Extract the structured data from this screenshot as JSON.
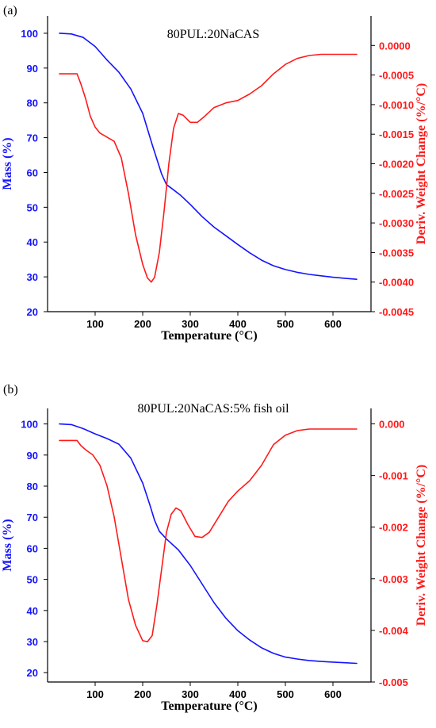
{
  "colors": {
    "mass": "#1414ff",
    "deriv": "#ff1a1a",
    "axis": "#000000"
  },
  "chart_data": [
    {
      "panel_label": "(a)",
      "type": "line",
      "title": "80PUL:20NaCAS",
      "xlabel": "Temperature (°C)",
      "ylabel_left": "Mass (%)",
      "ylabel_right": "Deriv. Weight Change (%/°C)",
      "xlim": [
        0,
        680
      ],
      "ylim_left": [
        20,
        105
      ],
      "ylim_right": [
        -0.0045,
        0.0005
      ],
      "xticks": [
        "100",
        "200",
        "300",
        "400",
        "500",
        "600"
      ],
      "yticks_left": [
        "20",
        "30",
        "40",
        "50",
        "60",
        "70",
        "80",
        "90",
        "100"
      ],
      "yticks_right": [
        "0.0000",
        "-0.0005",
        "-0.0010",
        "-0.0015",
        "-0.0020",
        "-0.0025",
        "-0.0030",
        "-0.0035",
        "-0.0040",
        "-0.0045"
      ],
      "grid": false,
      "series": [
        {
          "axis": "left",
          "x": [
            25,
            50,
            75,
            100,
            125,
            150,
            175,
            200,
            220,
            240,
            250,
            260,
            280,
            300,
            325,
            350,
            375,
            400,
            425,
            450,
            475,
            500,
            525,
            550,
            575,
            600,
            625,
            650
          ],
          "y": [
            100,
            99.8,
            98.8,
            96.2,
            92.3,
            88.8,
            84.0,
            77.0,
            68.0,
            59.5,
            56.5,
            55.5,
            53.4,
            50.8,
            47.3,
            44.3,
            41.8,
            39.3,
            36.9,
            34.8,
            33.2,
            32.1,
            31.3,
            30.7,
            30.3,
            29.9,
            29.6,
            29.3
          ]
        },
        {
          "axis": "right",
          "x": [
            25,
            40,
            55,
            62,
            70,
            80,
            90,
            100,
            110,
            125,
            140,
            155,
            170,
            185,
            200,
            210,
            218,
            225,
            235,
            245,
            255,
            265,
            275,
            285,
            300,
            315,
            330,
            350,
            375,
            400,
            425,
            450,
            475,
            500,
            525,
            550,
            575,
            600,
            625,
            650
          ],
          "y": [
            -0.00048,
            -0.00048,
            -0.00048,
            -0.00048,
            -0.00065,
            -0.0009,
            -0.0012,
            -0.00138,
            -0.00148,
            -0.00155,
            -0.00162,
            -0.0019,
            -0.0025,
            -0.0032,
            -0.0037,
            -0.00393,
            -0.004,
            -0.00392,
            -0.0035,
            -0.0028,
            -0.002,
            -0.0014,
            -0.00115,
            -0.00118,
            -0.0013,
            -0.0013,
            -0.0012,
            -0.00105,
            -0.00097,
            -0.00093,
            -0.00082,
            -0.00068,
            -0.00048,
            -0.00032,
            -0.00022,
            -0.00017,
            -0.00015,
            -0.00015,
            -0.00015,
            -0.00015
          ]
        }
      ]
    },
    {
      "panel_label": "(b)",
      "type": "line",
      "title": "80PUL:20NaCAS:5% fish oil",
      "xlabel": "Temperature (°C)",
      "ylabel_left": "Mass (%)",
      "ylabel_right": "Deriv. Weight Change (%/°C)",
      "xlim": [
        0,
        680
      ],
      "ylim_left": [
        17,
        105
      ],
      "ylim_right": [
        -0.005,
        0.0003
      ],
      "xticks": [
        "100",
        "200",
        "300",
        "400",
        "500",
        "600"
      ],
      "yticks_left": [
        "20",
        "30",
        "40",
        "50",
        "60",
        "70",
        "80",
        "90",
        "100"
      ],
      "yticks_right": [
        "0.000",
        "-0.001",
        "-0.002",
        "-0.003",
        "-0.004",
        "-0.005"
      ],
      "grid": false,
      "series": [
        {
          "axis": "left",
          "x": [
            25,
            50,
            75,
            100,
            125,
            150,
            175,
            200,
            215,
            225,
            235,
            250,
            275,
            300,
            325,
            350,
            375,
            400,
            425,
            450,
            475,
            500,
            525,
            550,
            575,
            600,
            625,
            650
          ],
          "y": [
            100,
            99.8,
            98.5,
            96.8,
            95.3,
            93.5,
            89.0,
            81.0,
            74.0,
            69.0,
            65.5,
            63.0,
            59.5,
            54.5,
            48.5,
            42.5,
            37.5,
            33.5,
            30.5,
            28.0,
            26.2,
            25.0,
            24.4,
            23.9,
            23.6,
            23.4,
            23.2,
            23.0
          ],
          "xlabel_unused": ""
        },
        {
          "axis": "right",
          "x": [
            25,
            40,
            55,
            62,
            70,
            80,
            95,
            110,
            125,
            140,
            155,
            170,
            185,
            200,
            210,
            220,
            230,
            240,
            250,
            260,
            270,
            280,
            295,
            310,
            325,
            340,
            360,
            380,
            400,
            425,
            450,
            475,
            500,
            525,
            550,
            575,
            600,
            625,
            650
          ],
          "y": [
            -0.00032,
            -0.00032,
            -0.00032,
            -0.00032,
            -0.00042,
            -0.0005,
            -0.0006,
            -0.0008,
            -0.0012,
            -0.0018,
            -0.0026,
            -0.0034,
            -0.0039,
            -0.0042,
            -0.00422,
            -0.0041,
            -0.0035,
            -0.0028,
            -0.0021,
            -0.00175,
            -0.00163,
            -0.00168,
            -0.00195,
            -0.00218,
            -0.0022,
            -0.0021,
            -0.0018,
            -0.0015,
            -0.0013,
            -0.0011,
            -0.0008,
            -0.0004,
            -0.00022,
            -0.00013,
            -0.0001,
            -0.0001,
            -0.0001,
            -0.0001,
            -0.0001
          ]
        }
      ]
    }
  ]
}
